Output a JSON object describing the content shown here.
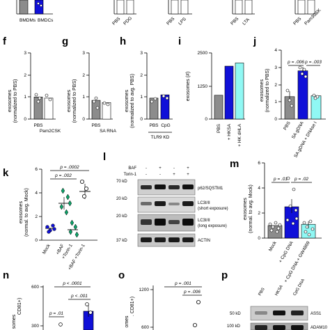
{
  "colors": {
    "grey": "#8c8c8c",
    "blue": "#1010d8",
    "cyan": "#90f8f4",
    "green": "#0da46a",
    "white": "#ffffff"
  },
  "top_row": {
    "labels": [
      {
        "text": "BMDMs"
      },
      {
        "text": "BMDCs"
      },
      {
        "text": "PBS"
      },
      {
        "text": "PDG"
      },
      {
        "text": "PBS"
      },
      {
        "text": "LPS"
      },
      {
        "text": "PBS"
      },
      {
        "text": "LTA"
      },
      {
        "text": "PBS"
      },
      {
        "text": "Pam3CSK"
      }
    ]
  },
  "panels": {
    "f": {
      "letter": "f",
      "ylabel_1": "exosomes",
      "ylabel_2": "(normalized to PBS)",
      "categories": [
        "PBS",
        "Pam2CSK"
      ],
      "values": [
        1.0,
        0.95
      ],
      "ylim": [
        0,
        3
      ],
      "yticks": [
        "0",
        "1",
        "2",
        "3"
      ]
    },
    "g": {
      "letter": "g",
      "ylabel_1": "exosomes",
      "ylabel_2": "(normalized to PBS)",
      "categories": [
        "PBS",
        "SA RNA"
      ],
      "values": [
        0.85,
        0.75
      ],
      "ylim": [
        0,
        3
      ],
      "yticks": [
        "0",
        "1",
        "2",
        "3"
      ]
    },
    "h": {
      "letter": "h",
      "ylabel_1": "exosomes",
      "ylabel_2": "(normalized to avg. PBS)",
      "categories": [
        "PBS",
        "CpG"
      ],
      "values": [
        0.95,
        1.1
      ],
      "ylim": [
        0,
        3
      ],
      "yticks": [
        "0",
        "1",
        "2",
        "3"
      ],
      "group_label": "TLR9 KD"
    },
    "i": {
      "letter": "i",
      "ylabel": "exosomes (#)",
      "categories": [
        "PBS",
        "+ HKSA",
        "+ HK dHLA"
      ],
      "values": [
        900,
        2000,
        2120
      ],
      "ylim": [
        0,
        2500
      ],
      "yticks": [
        "0",
        "1250",
        "2500"
      ]
    },
    "j": {
      "letter": "j",
      "ylabel_1": "exosomes",
      "ylabel_2": "(normalized to PBS)",
      "categories": [
        "PBS",
        "SA gDNA",
        "SA gDNA + DNAse I"
      ],
      "values": [
        1.3,
        2.8,
        1.35
      ],
      "ylim": [
        0,
        4
      ],
      "yticks": [
        "0",
        "1",
        "2",
        "3",
        "4"
      ],
      "p_1": "p = .006",
      "p_2": "p = .003"
    },
    "k": {
      "letter": "k",
      "ylabel_1": "exosomes",
      "ylabel_2": "(normal. to avg. Mock)",
      "categories": [
        "Mock",
        "+BAF",
        "+Torin-1",
        "+BAF +Torin-1"
      ],
      "values": [
        1.0,
        3.1,
        0.9,
        4.1
      ],
      "ylim": [
        0,
        6
      ],
      "yticks": [
        "0",
        "2",
        "4",
        "6"
      ],
      "p_1": "p = .002",
      "p_2": "p = .0002"
    },
    "l": {
      "letter": "l",
      "row_baf": "BAF",
      "row_torin": "Torin-1",
      "signs_baf": [
        "-",
        "+",
        "-",
        "+"
      ],
      "signs_torin": [
        "-",
        "-",
        "+",
        "+"
      ],
      "mw": [
        "70 kD",
        "20 kD",
        "20 kD",
        "37 kD"
      ],
      "bands": [
        "p62/SQSTM1",
        "LC3I/II",
        "(short exposure)",
        "LC3I/II",
        "(long exposure)",
        "ACTIN"
      ]
    },
    "m": {
      "letter": "m",
      "ylabel_1": "exosomes",
      "ylabel_2": "(normal. to avg. Mock)",
      "categories": [
        "Mock",
        "+ CpG DNA",
        "+ CpG DNA + GW4869"
      ],
      "values": [
        1.0,
        2.5,
        1.1
      ],
      "ylim": [
        0,
        6
      ],
      "yticks": [
        "0",
        "2",
        "4",
        "6"
      ],
      "p_1": "p = .01",
      "p_2": "p = .02"
    },
    "n": {
      "letter": "n",
      "ylabel_1": "somes",
      "ylabel_2": "CD81+)",
      "yticks": [
        "300",
        "600"
      ],
      "p_1": "p < .0001",
      "p_2": "p = .01",
      "p_3": "p < .001"
    },
    "o": {
      "letter": "o",
      "ylabel_1": "omes",
      "ylabel_2": ". CD81+)",
      "yticks": [
        "600",
        "1200"
      ],
      "p_1": "p = .001",
      "p_2": "p = .006"
    },
    "p": {
      "letter": "p",
      "cols": [
        "PBS",
        "HKSA",
        "CpG DNA"
      ],
      "mw": [
        "50 kD",
        "100 kD"
      ],
      "bands": [
        "ASS1",
        "ADAM10"
      ]
    }
  },
  "chart_data": [
    {
      "type": "bar",
      "panel": "f",
      "categories": [
        "PBS",
        "Pam2CSK"
      ],
      "values": [
        1.0,
        0.95
      ],
      "ylabel": "exosomes (normalized to PBS)",
      "ylim": [
        0,
        3
      ]
    },
    {
      "type": "bar",
      "panel": "g",
      "categories": [
        "PBS",
        "SA RNA"
      ],
      "values": [
        0.85,
        0.75
      ],
      "ylabel": "exosomes (normalized to PBS)",
      "ylim": [
        0,
        3
      ]
    },
    {
      "type": "bar",
      "panel": "h",
      "categories": [
        "PBS",
        "CpG"
      ],
      "values": [
        0.95,
        1.1
      ],
      "ylabel": "exosomes (normalized to avg. PBS)",
      "ylim": [
        0,
        3
      ]
    },
    {
      "type": "bar",
      "panel": "i",
      "categories": [
        "PBS",
        "+ HKSA",
        "+ HK dHLA"
      ],
      "values": [
        900,
        2000,
        2120
      ],
      "ylabel": "exosomes (#)",
      "ylim": [
        0,
        2500
      ]
    },
    {
      "type": "bar",
      "panel": "j",
      "categories": [
        "PBS",
        "SA gDNA",
        "SA gDNA + DNAse I"
      ],
      "values": [
        1.3,
        2.8,
        1.35
      ],
      "ylabel": "exosomes (normalized to PBS)",
      "ylim": [
        0,
        4
      ]
    },
    {
      "type": "scatter",
      "panel": "k",
      "categories": [
        "Mock",
        "+BAF",
        "+Torin-1",
        "+BAF +Torin-1"
      ],
      "values": [
        1.0,
        3.1,
        0.9,
        4.1
      ],
      "ylabel": "exosomes (normal. to avg. Mock)",
      "ylim": [
        0,
        6
      ]
    },
    {
      "type": "bar",
      "panel": "m",
      "categories": [
        "Mock",
        "+ CpG DNA",
        "+ CpG DNA + GW4869"
      ],
      "values": [
        1.0,
        2.5,
        1.1
      ],
      "ylabel": "exosomes (normal. to avg. Mock)",
      "ylim": [
        0,
        6
      ]
    }
  ]
}
